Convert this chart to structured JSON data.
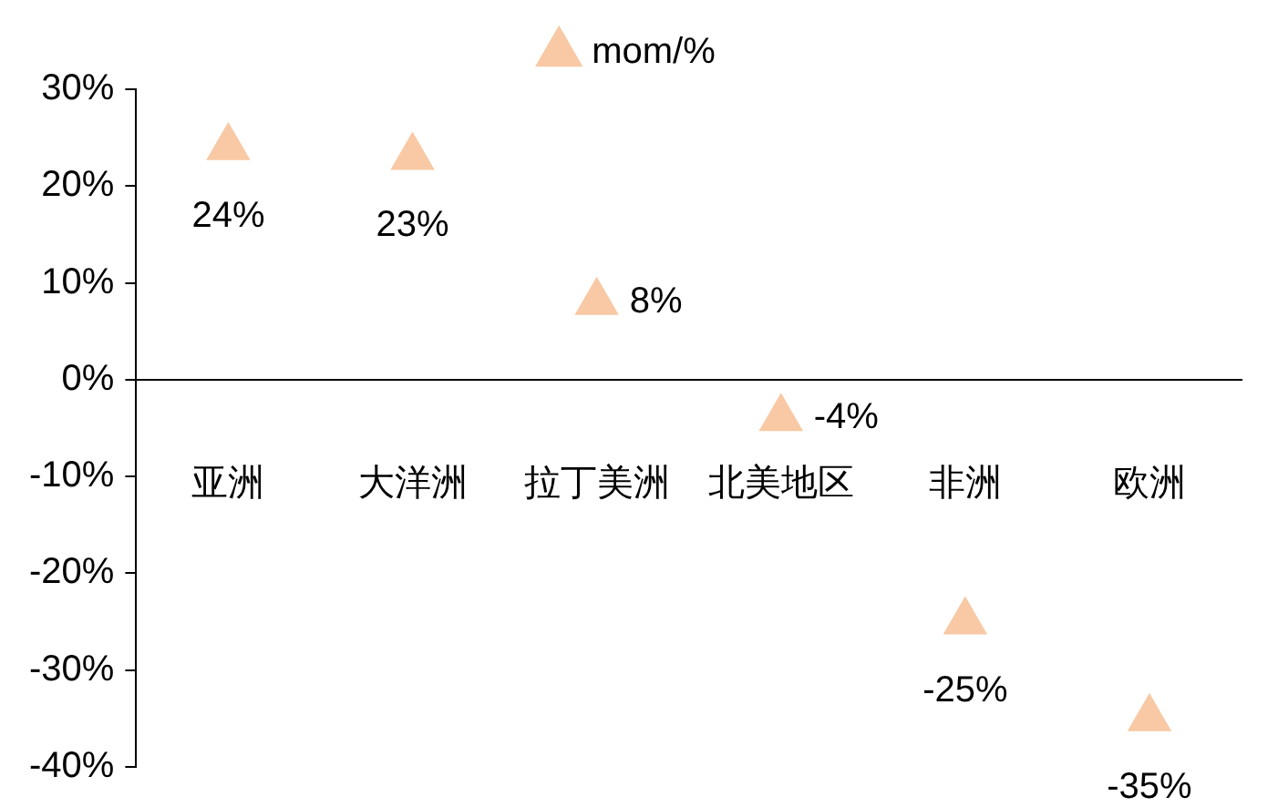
{
  "chart_data": {
    "type": "scatter",
    "categories": [
      "亚洲",
      "大洋洲",
      "拉丁美洲",
      "北美地区",
      "非洲",
      "欧洲"
    ],
    "series": [
      {
        "name": "mom/%",
        "color": "#f8c9a4",
        "values": [
          24,
          23,
          8,
          -4,
          -25,
          -35
        ],
        "value_labels": [
          "24%",
          "23%",
          "8%",
          "-4%",
          "-25%",
          "-35%"
        ]
      }
    ],
    "ylim": [
      -40,
      30
    ],
    "yticks": [
      {
        "value": 30,
        "label": "30%"
      },
      {
        "value": 20,
        "label": "20%"
      },
      {
        "value": 10,
        "label": "10%"
      },
      {
        "value": 0,
        "label": "0%"
      },
      {
        "value": -10,
        "label": "-10%"
      },
      {
        "value": -20,
        "label": "-20%"
      },
      {
        "value": -30,
        "label": "-30%"
      },
      {
        "value": -40,
        "label": "-40%"
      }
    ],
    "marker": "triangle",
    "legend": "top",
    "grid": false
  }
}
